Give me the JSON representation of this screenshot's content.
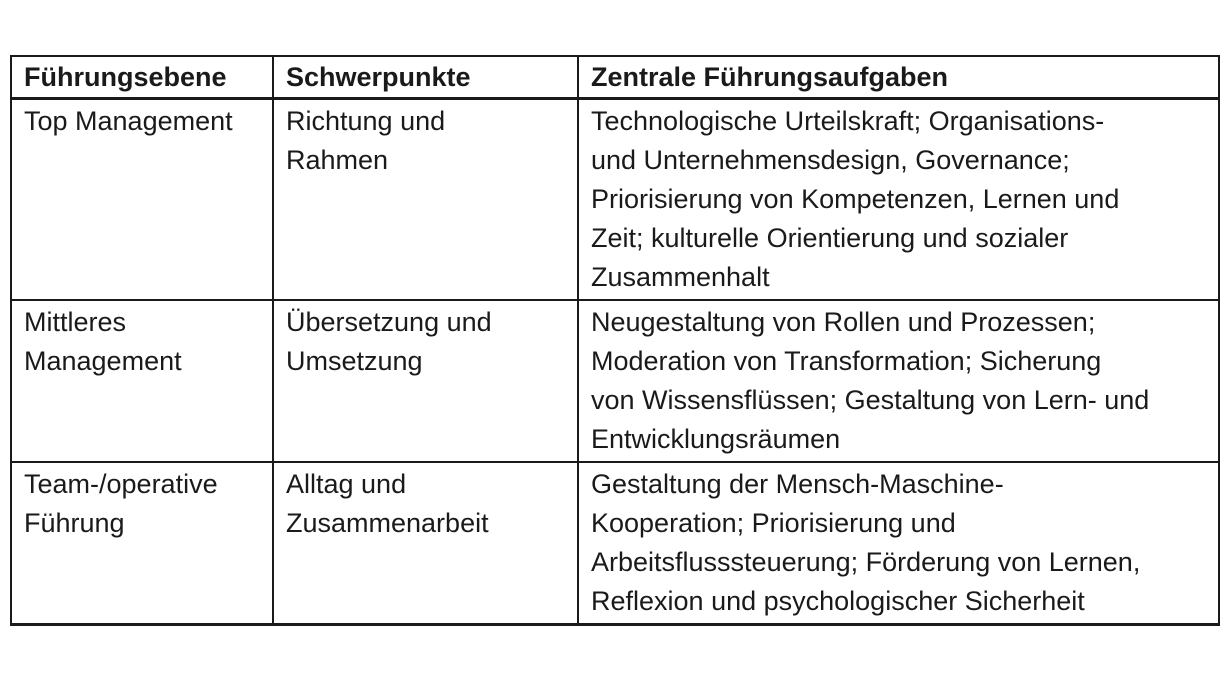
{
  "document": {
    "background_color": "#ffffff",
    "text_color": "#1a1a1a",
    "border_color": "#1a1a1a"
  },
  "table": {
    "headers": [
      "Führungsebene",
      "Schwerpunkte",
      "Zentrale Führungsaufgaben"
    ],
    "rows": [
      {
        "fuehrungsebene": [
          "Top Management"
        ],
        "schwerpunkte": [
          "Richtung und",
          "Rahmen"
        ],
        "aufgaben": [
          "Technologische Urteilskraft; Organisations-",
          "und Unternehmensdesign, Governance;",
          "Priorisierung von Kompetenzen, Lernen und",
          "Zeit; kulturelle Orientierung und sozialer",
          "Zusammenhalt"
        ]
      },
      {
        "fuehrungsebene": [
          "Mittleres",
          "Management"
        ],
        "schwerpunkte": [
          "Übersetzung und",
          "Umsetzung"
        ],
        "aufgaben": [
          "Neugestaltung von Rollen und Prozessen;",
          "Moderation von Transformation; Sicherung",
          "von Wissensflüssen; Gestaltung von Lern- und",
          "Entwicklungsräumen"
        ]
      },
      {
        "fuehrungsebene": [
          "Team-/operative",
          "Führung"
        ],
        "schwerpunkte": [
          "Alltag und",
          "Zusammenarbeit"
        ],
        "aufgaben": [
          "Gestaltung der Mensch-Maschine-",
          "Kooperation; Priorisierung und",
          "Arbeitsflusssteuerung; Förderung von Lernen,",
          "Reflexion und psychologischer Sicherheit"
        ]
      }
    ]
  }
}
